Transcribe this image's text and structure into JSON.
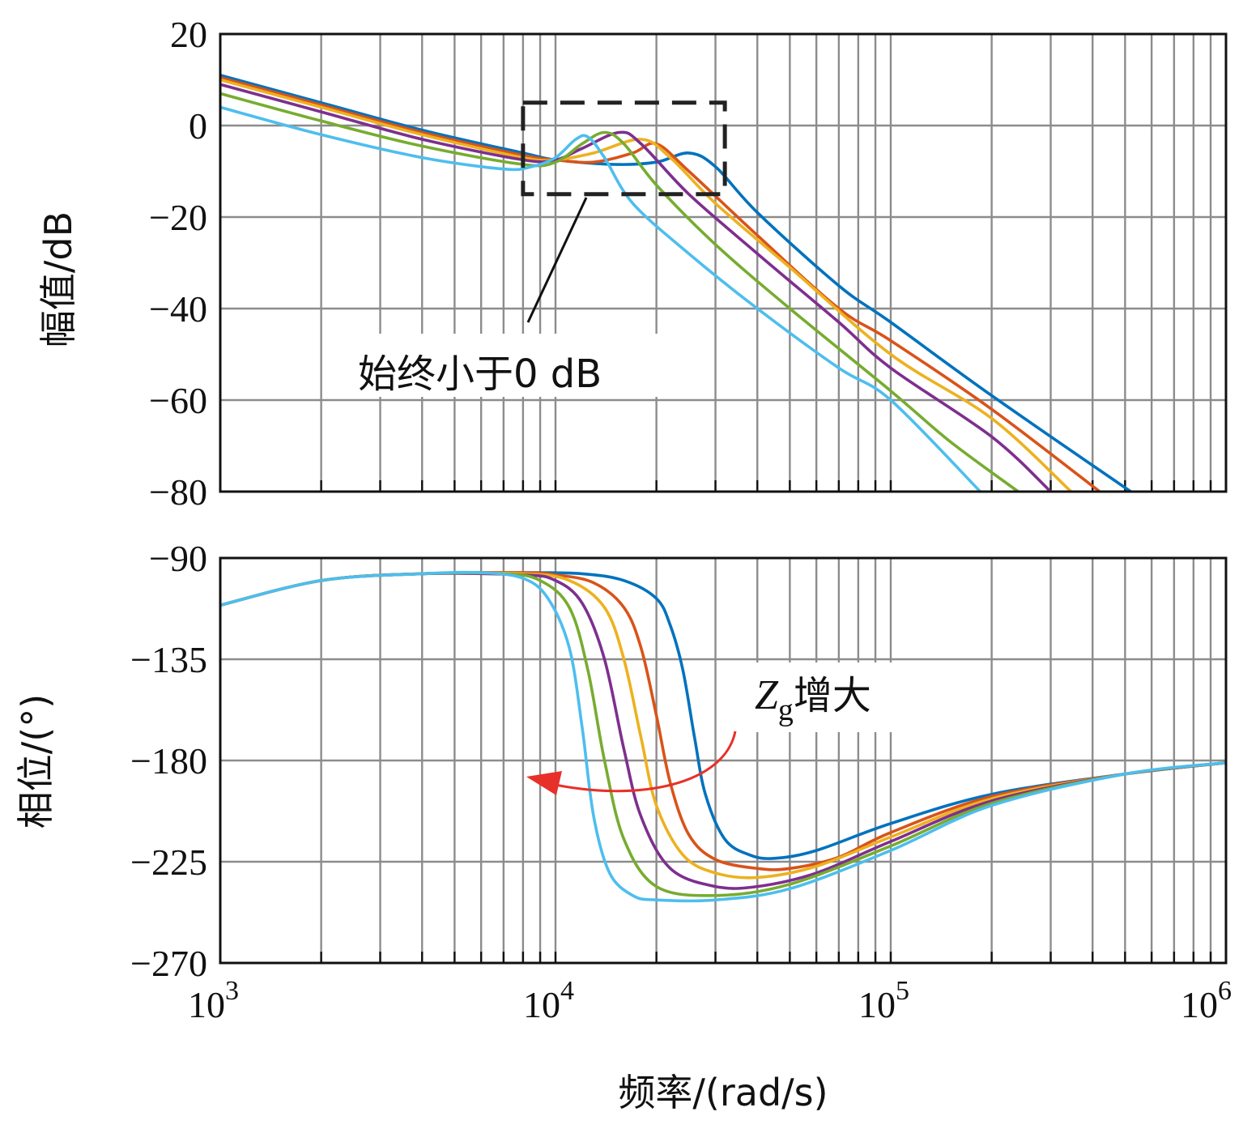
{
  "chart_data": [
    {
      "type": "line",
      "panel": "magnitude",
      "ylabel": "幅值/dB",
      "xscale": "log",
      "xlim": [
        1000,
        1000000
      ],
      "ylim": [
        -80,
        20
      ],
      "yticks": [
        20,
        0,
        -20,
        -40,
        -60,
        -80
      ],
      "ytick_labels": [
        "20",
        "0",
        "−20",
        "−40",
        "−60",
        "−80"
      ],
      "grid": true,
      "annotation": "始终小于0 dB",
      "highlight_box": {
        "x_range": [
          8000,
          32000
        ],
        "y_range": [
          -15,
          5
        ]
      },
      "series": [
        {
          "color": "#0072bd",
          "points": [
            [
              1000,
              11
            ],
            [
              2000,
              5
            ],
            [
              4000,
              -1
            ],
            [
              8000,
              -6
            ],
            [
              10000,
              -7.5
            ],
            [
              15000,
              -8.5
            ],
            [
              20000,
              -8
            ],
            [
              25000,
              -6
            ],
            [
              30000,
              -9
            ],
            [
              40000,
              -19
            ],
            [
              70000,
              -35
            ],
            [
              100000,
              -43
            ],
            [
              200000,
              -59
            ],
            [
              520000,
              -80
            ]
          ]
        },
        {
          "color": "#d95319",
          "points": [
            [
              1000,
              10.5
            ],
            [
              2000,
              4.5
            ],
            [
              4000,
              -1.5
            ],
            [
              8000,
              -6.5
            ],
            [
              10000,
              -7.5
            ],
            [
              13000,
              -8
            ],
            [
              17000,
              -6
            ],
            [
              20000,
              -4
            ],
            [
              25000,
              -10
            ],
            [
              40000,
              -24
            ],
            [
              70000,
              -40
            ],
            [
              100000,
              -47
            ],
            [
              200000,
              -62
            ],
            [
              420000,
              -80
            ]
          ]
        },
        {
          "color": "#edb120",
          "points": [
            [
              1000,
              10
            ],
            [
              2000,
              4
            ],
            [
              4000,
              -2
            ],
            [
              8000,
              -7
            ],
            [
              10000,
              -7.5
            ],
            [
              13000,
              -6
            ],
            [
              18000,
              -3
            ],
            [
              22000,
              -7
            ],
            [
              30000,
              -17
            ],
            [
              50000,
              -31
            ],
            [
              100000,
              -50
            ],
            [
              200000,
              -64
            ],
            [
              345000,
              -80
            ]
          ]
        },
        {
          "color": "#7e2f8e",
          "points": [
            [
              1000,
              9
            ],
            [
              2000,
              3
            ],
            [
              4000,
              -3
            ],
            [
              8000,
              -7.5
            ],
            [
              10000,
              -7.5
            ],
            [
              12000,
              -5
            ],
            [
              15500,
              -1.5
            ],
            [
              18000,
              -4
            ],
            [
              25000,
              -15
            ],
            [
              40000,
              -28
            ],
            [
              70000,
              -43
            ],
            [
              100000,
              -53
            ],
            [
              200000,
              -68
            ],
            [
              300000,
              -80
            ]
          ]
        },
        {
          "color": "#77ac30",
          "points": [
            [
              1000,
              7
            ],
            [
              2000,
              1
            ],
            [
              4000,
              -4.5
            ],
            [
              8000,
              -8.5
            ],
            [
              10000,
              -8
            ],
            [
              12000,
              -4
            ],
            [
              14000,
              -1.5
            ],
            [
              16000,
              -4
            ],
            [
              20000,
              -13
            ],
            [
              30000,
              -26
            ],
            [
              50000,
              -40
            ],
            [
              100000,
              -58
            ],
            [
              150000,
              -69
            ],
            [
              240000,
              -80
            ]
          ]
        },
        {
          "color": "#4dbeee",
          "points": [
            [
              1000,
              4
            ],
            [
              2000,
              -2
            ],
            [
              4000,
              -7
            ],
            [
              7000,
              -9.5
            ],
            [
              8500,
              -9
            ],
            [
              10000,
              -7
            ],
            [
              11500,
              -3
            ],
            [
              12500,
              -2.5
            ],
            [
              14000,
              -7
            ],
            [
              17000,
              -17
            ],
            [
              25000,
              -28
            ],
            [
              40000,
              -40
            ],
            [
              70000,
              -53
            ],
            [
              100000,
              -60
            ],
            [
              185000,
              -80
            ]
          ]
        }
      ]
    },
    {
      "type": "line",
      "panel": "phase",
      "ylabel": "相位/(°)",
      "xlabel": "频率/(rad/s)",
      "xscale": "log",
      "xlim": [
        1000,
        1000000
      ],
      "ylim": [
        -270,
        -90
      ],
      "yticks": [
        -90,
        -135,
        -180,
        -225,
        -270
      ],
      "ytick_labels": [
        "−90",
        "−135",
        "−180",
        "−225",
        "−270"
      ],
      "xticks": [
        1000,
        10000,
        100000,
        1000000
      ],
      "xtick_labels": [
        {
          "base": "10",
          "exp": "3"
        },
        {
          "base": "10",
          "exp": "4"
        },
        {
          "base": "10",
          "exp": "5"
        },
        {
          "base": "10",
          "exp": "6"
        }
      ],
      "grid": true,
      "annotation": {
        "symbol": "Z",
        "subscript": "g",
        "text": "增大"
      },
      "arrow_color": "#e8302a",
      "series": [
        {
          "color": "#0072bd",
          "points": [
            [
              1000,
              -111
            ],
            [
              2000,
              -100
            ],
            [
              4000,
              -97
            ],
            [
              8000,
              -96.5
            ],
            [
              12000,
              -97
            ],
            [
              16000,
              -100
            ],
            [
              20000,
              -108
            ],
            [
              22000,
              -120
            ],
            [
              24000,
              -140
            ],
            [
              26000,
              -170
            ],
            [
              28000,
              -195
            ],
            [
              32000,
              -215
            ],
            [
              38000,
              -222
            ],
            [
              45000,
              -223.5
            ],
            [
              60000,
              -220
            ],
            [
              100000,
              -208
            ],
            [
              200000,
              -195
            ],
            [
              500000,
              -186
            ],
            [
              1000000,
              -181
            ]
          ]
        },
        {
          "color": "#d95319",
          "points": [
            [
              1000,
              -111
            ],
            [
              2000,
              -100
            ],
            [
              4000,
              -97
            ],
            [
              8000,
              -96.5
            ],
            [
              10000,
              -97.5
            ],
            [
              13000,
              -101
            ],
            [
              16000,
              -112
            ],
            [
              18000,
              -130
            ],
            [
              20000,
              -160
            ],
            [
              22000,
              -190
            ],
            [
              25000,
              -213
            ],
            [
              30000,
              -224
            ],
            [
              40000,
              -228
            ],
            [
              50000,
              -228
            ],
            [
              70000,
              -223
            ],
            [
              100000,
              -212
            ],
            [
              200000,
              -196
            ],
            [
              500000,
              -186
            ],
            [
              1000000,
              -181
            ]
          ]
        },
        {
          "color": "#edb120",
          "points": [
            [
              1000,
              -111
            ],
            [
              2000,
              -100
            ],
            [
              4000,
              -97
            ],
            [
              8000,
              -97
            ],
            [
              11000,
              -100
            ],
            [
              14000,
              -112
            ],
            [
              16000,
              -135
            ],
            [
              18000,
              -170
            ],
            [
              20000,
              -200
            ],
            [
              24000,
              -222
            ],
            [
              30000,
              -230
            ],
            [
              40000,
              -232
            ],
            [
              60000,
              -227
            ],
            [
              100000,
              -214
            ],
            [
              200000,
              -197
            ],
            [
              500000,
              -186
            ],
            [
              1000000,
              -181
            ]
          ]
        },
        {
          "color": "#7e2f8e",
          "points": [
            [
              1000,
              -111
            ],
            [
              2000,
              -100
            ],
            [
              4000,
              -97
            ],
            [
              8000,
              -97.5
            ],
            [
              10000,
              -100
            ],
            [
              12000,
              -110
            ],
            [
              14000,
              -135
            ],
            [
              16000,
              -175
            ],
            [
              18000,
              -205
            ],
            [
              22000,
              -228
            ],
            [
              30000,
              -236
            ],
            [
              40000,
              -236
            ],
            [
              60000,
              -230
            ],
            [
              100000,
              -216
            ],
            [
              200000,
              -198
            ],
            [
              500000,
              -186
            ],
            [
              1000000,
              -181
            ]
          ]
        },
        {
          "color": "#77ac30",
          "points": [
            [
              1000,
              -111
            ],
            [
              2000,
              -100
            ],
            [
              4000,
              -97
            ],
            [
              7000,
              -97
            ],
            [
              9000,
              -100
            ],
            [
              11000,
              -112
            ],
            [
              12500,
              -140
            ],
            [
              14000,
              -180
            ],
            [
              16000,
              -215
            ],
            [
              20000,
              -236
            ],
            [
              30000,
              -240
            ],
            [
              50000,
              -235
            ],
            [
              100000,
              -218
            ],
            [
              200000,
              -199
            ],
            [
              500000,
              -186
            ],
            [
              1000000,
              -181
            ]
          ]
        },
        {
          "color": "#4dbeee",
          "points": [
            [
              1000,
              -111
            ],
            [
              2000,
              -100
            ],
            [
              4000,
              -97
            ],
            [
              6000,
              -96.5
            ],
            [
              8000,
              -99
            ],
            [
              9500,
              -108
            ],
            [
              11000,
              -130
            ],
            [
              12000,
              -165
            ],
            [
              13000,
              -205
            ],
            [
              14500,
              -230
            ],
            [
              17000,
              -240
            ],
            [
              20000,
              -242
            ],
            [
              30000,
              -242
            ],
            [
              50000,
              -237
            ],
            [
              100000,
              -220
            ],
            [
              200000,
              -200
            ],
            [
              500000,
              -186
            ],
            [
              1000000,
              -181
            ]
          ]
        }
      ]
    }
  ]
}
